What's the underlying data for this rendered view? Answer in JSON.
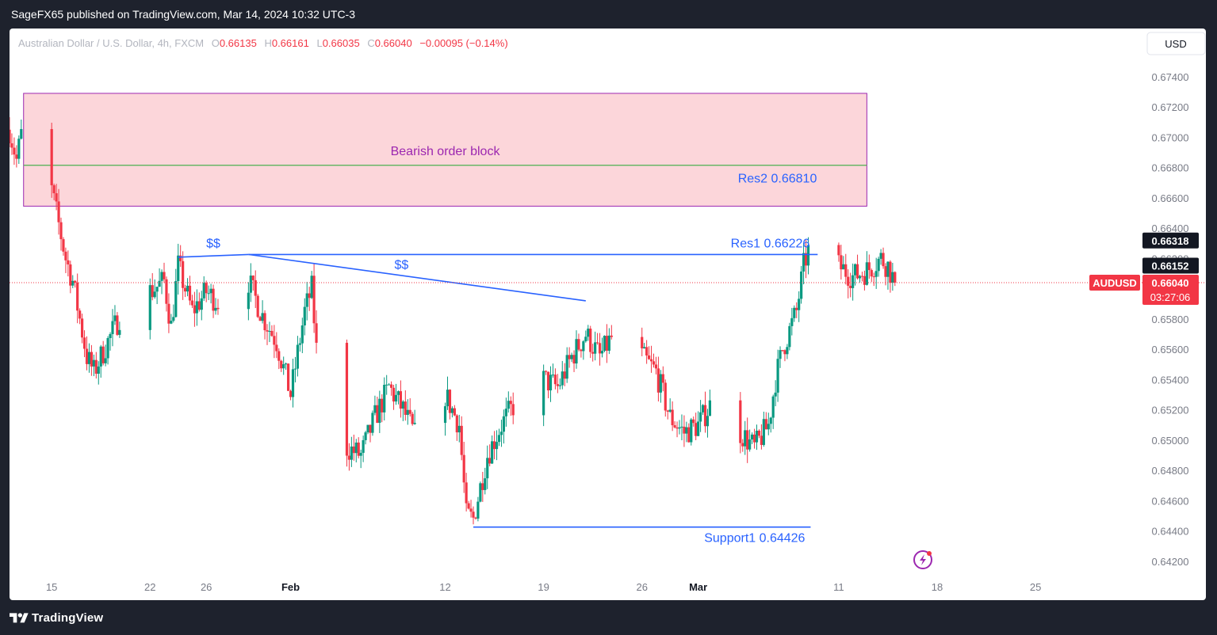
{
  "header": {
    "published": "SageFX65 published on TradingView.com, Mar 14, 2024 10:32 UTC-3"
  },
  "footer": {
    "brand": "TradingView"
  },
  "colors": {
    "up": "#089981",
    "down": "#f23645",
    "line": "#2962ff",
    "zone_fill": "#fcd6da",
    "zone_border": "#9c27b0",
    "zone_mid": "#4caf50",
    "label_purple": "#9c27b0"
  },
  "chart_data": {
    "type": "candlestick",
    "symbol_line": {
      "name": "Australian Dollar / U.S. Dollar, 4h, FXCM",
      "o_label": "O",
      "o": "0.66135",
      "h_label": "H",
      "h": "0.66161",
      "l_label": "L",
      "l": "0.66035",
      "c_label": "C",
      "c": "0.66040",
      "change": "−0.00095 (−0.14%)"
    },
    "currency": "USD",
    "y_range": [
      0.641,
      0.6753
    ],
    "y_ticks": [
      "0.67400",
      "0.67200",
      "0.67000",
      "0.66800",
      "0.66600",
      "0.66400",
      "0.66200",
      "0.65800",
      "0.65600",
      "0.65400",
      "0.65200",
      "0.65000",
      "0.64800",
      "0.64600",
      "0.64400",
      "0.64200"
    ],
    "x_range": [
      "2024-01-12",
      "2024-03-29"
    ],
    "x_ticks": [
      {
        "date": "2024-01-15",
        "label": "15",
        "bold": false
      },
      {
        "date": "2024-01-22",
        "label": "22",
        "bold": false
      },
      {
        "date": "2024-01-26",
        "label": "26",
        "bold": false
      },
      {
        "date": "2024-02-01",
        "label": "Feb",
        "bold": true
      },
      {
        "date": "2024-02-12",
        "label": "12",
        "bold": false
      },
      {
        "date": "2024-02-19",
        "label": "19",
        "bold": false
      },
      {
        "date": "2024-02-26",
        "label": "26",
        "bold": false
      },
      {
        "date": "2024-03-01",
        "label": "Mar",
        "bold": true
      },
      {
        "date": "2024-03-11",
        "label": "11",
        "bold": false
      },
      {
        "date": "2024-03-18",
        "label": "18",
        "bold": false
      },
      {
        "date": "2024-03-25",
        "label": "25",
        "bold": false
      }
    ],
    "price_labels": [
      {
        "value": "0.66318",
        "price": 0.66318,
        "kind": "black"
      },
      {
        "value": "0.66152",
        "price": 0.66152,
        "kind": "black"
      }
    ],
    "current": {
      "symbol": "AUDUSD",
      "price": 0.6604,
      "value": "0.66040",
      "countdown": "03:27:06"
    },
    "close_path": [
      [
        "2024-01-12",
        0.6705
      ],
      [
        "2024-01-12T12:00",
        0.6685
      ],
      [
        "2024-01-13",
        0.671
      ],
      [
        "2024-01-14",
        0.669
      ],
      [
        "2024-01-15",
        0.6665
      ],
      [
        "2024-01-16",
        0.662
      ],
      [
        "2024-01-16T12:00",
        0.6605
      ],
      [
        "2024-01-17",
        0.658
      ],
      [
        "2024-01-17T12:00",
        0.6555
      ],
      [
        "2024-01-18",
        0.6545
      ],
      [
        "2024-01-19",
        0.6565
      ],
      [
        "2024-01-20",
        0.6585
      ],
      [
        "2024-01-21",
        0.6602
      ],
      [
        "2024-01-22",
        0.6598
      ],
      [
        "2024-01-23",
        0.6605
      ],
      [
        "2024-01-23T12:00",
        0.6575
      ],
      [
        "2024-01-24",
        0.6615
      ],
      [
        "2024-01-25",
        0.6585
      ],
      [
        "2024-01-26",
        0.6598
      ],
      [
        "2024-01-27",
        0.659
      ],
      [
        "2024-01-28",
        0.6612
      ],
      [
        "2024-01-29",
        0.6605
      ],
      [
        "2024-01-30",
        0.6582
      ],
      [
        "2024-01-31",
        0.6565
      ],
      [
        "2024-02-01",
        0.653
      ],
      [
        "2024-02-02",
        0.6585
      ],
      [
        "2024-02-02T12:00",
        0.66
      ],
      [
        "2024-02-03",
        0.654
      ],
      [
        "2024-02-04",
        0.652
      ],
      [
        "2024-02-05",
        0.6495
      ],
      [
        "2024-02-06",
        0.649
      ],
      [
        "2024-02-07",
        0.6515
      ],
      [
        "2024-02-08",
        0.6535
      ],
      [
        "2024-02-09",
        0.652
      ],
      [
        "2024-02-10",
        0.65
      ],
      [
        "2024-02-11",
        0.6525
      ],
      [
        "2024-02-12",
        0.653
      ],
      [
        "2024-02-13",
        0.651
      ],
      [
        "2024-02-13T12:00",
        0.645
      ],
      [
        "2024-02-14",
        0.6448
      ],
      [
        "2024-02-15",
        0.649
      ],
      [
        "2024-02-16",
        0.651
      ],
      [
        "2024-02-17",
        0.6525
      ],
      [
        "2024-02-18",
        0.652
      ],
      [
        "2024-02-19",
        0.654
      ],
      [
        "2024-02-20",
        0.6535
      ],
      [
        "2024-02-21",
        0.6555
      ],
      [
        "2024-02-22",
        0.657
      ],
      [
        "2024-02-23",
        0.6555
      ],
      [
        "2024-02-24",
        0.657
      ],
      [
        "2024-02-25",
        0.6565
      ],
      [
        "2024-02-26",
        0.6555
      ],
      [
        "2024-02-27",
        0.6545
      ],
      [
        "2024-02-28",
        0.6515
      ],
      [
        "2024-02-29",
        0.6505
      ],
      [
        "2024-03-01",
        0.651
      ],
      [
        "2024-03-02",
        0.6525
      ],
      [
        "2024-03-03",
        0.652
      ],
      [
        "2024-03-04",
        0.6505
      ],
      [
        "2024-03-05",
        0.6495
      ],
      [
        "2024-03-06",
        0.651
      ],
      [
        "2024-03-06T12:00",
        0.654
      ],
      [
        "2024-03-07",
        0.656
      ],
      [
        "2024-03-08",
        0.6585
      ],
      [
        "2024-03-08T12:00",
        0.6615
      ],
      [
        "2024-03-09",
        0.663
      ],
      [
        "2024-03-10",
        0.6645
      ],
      [
        "2024-03-10T12:00",
        0.6625
      ],
      [
        "2024-03-11",
        0.6615
      ],
      [
        "2024-03-12",
        0.6608
      ],
      [
        "2024-03-13",
        0.6612
      ],
      [
        "2024-03-14",
        0.662
      ],
      [
        "2024-03-14T12:00",
        0.6615
      ],
      [
        "2024-03-15",
        0.6604
      ]
    ],
    "annotations": {
      "order_block": {
        "label": "Bearish order block",
        "start": "2024-01-13",
        "end": "2024-03-13",
        "top": 0.6729,
        "bottom": 0.66545,
        "mid": 0.66815
      },
      "res2": {
        "label": "Res2 0.66810",
        "price": 0.6681
      },
      "res1": {
        "label": "Res1 0.66226",
        "price": 0.66226,
        "start": "2024-01-29",
        "end": "2024-03-09T12:00"
      },
      "support1": {
        "label": "Support1  0.64426",
        "price": 0.64426,
        "start": "2024-02-14",
        "end": "2024-03-09"
      },
      "liq_left": {
        "label": "$$",
        "start": "2024-01-24",
        "start_price": 0.66208,
        "end": "2024-01-29",
        "end_price": 0.66226
      },
      "liq_right": {
        "label": "$$",
        "start": "2024-01-29",
        "start_price": 0.66226,
        "end": "2024-02-22",
        "end_price": 0.6592
      }
    }
  }
}
